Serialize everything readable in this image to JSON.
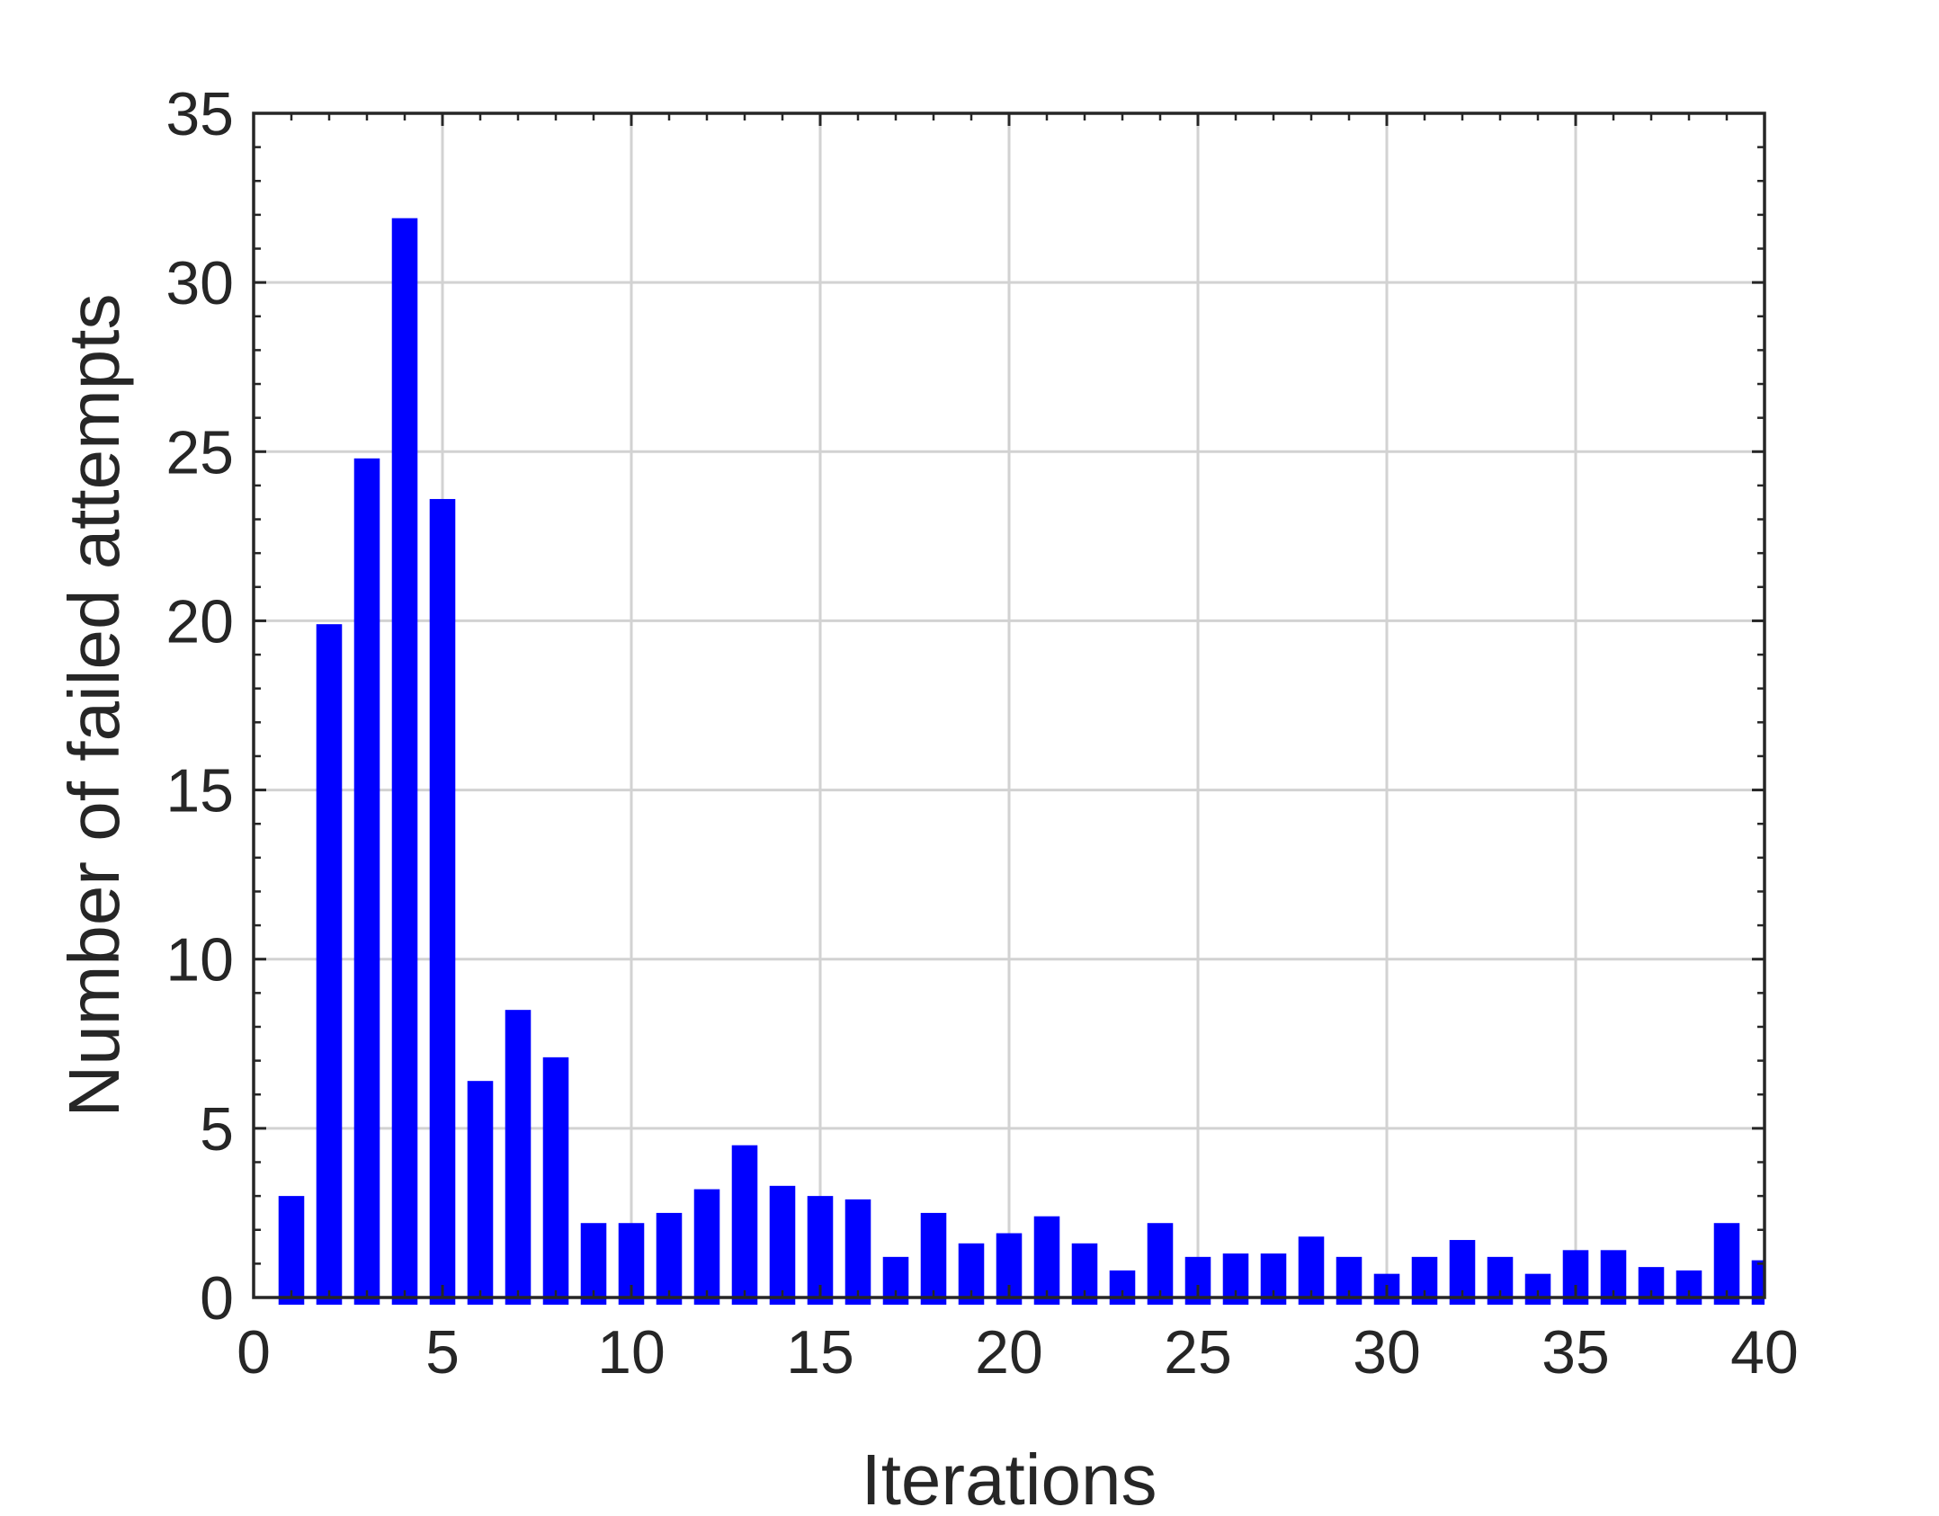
{
  "chart_data": {
    "type": "bar",
    "title": "",
    "xlabel": "Iterations",
    "ylabel": "Number of failed attempts",
    "xlim": [
      0,
      40
    ],
    "ylim": [
      0,
      35
    ],
    "xticks": [
      0,
      5,
      10,
      15,
      20,
      25,
      30,
      35,
      40
    ],
    "yticks": [
      0,
      5,
      10,
      15,
      20,
      25,
      30,
      35
    ],
    "grid": true,
    "bar_color": "#0000FF",
    "x": [
      1,
      2,
      3,
      4,
      5,
      6,
      7,
      8,
      9,
      10,
      11,
      12,
      13,
      14,
      15,
      16,
      17,
      18,
      19,
      20,
      21,
      22,
      23,
      24,
      25,
      26,
      27,
      28,
      29,
      30,
      31,
      32,
      33,
      34,
      35,
      36,
      37,
      38,
      39,
      40
    ],
    "values": [
      3.0,
      19.9,
      24.8,
      31.9,
      23.6,
      6.4,
      8.5,
      7.1,
      2.2,
      2.2,
      2.5,
      3.2,
      4.5,
      3.3,
      3.0,
      2.9,
      1.2,
      2.5,
      1.6,
      1.9,
      2.4,
      1.6,
      0.8,
      2.2,
      1.2,
      1.3,
      1.3,
      1.8,
      1.2,
      0.7,
      1.2,
      1.7,
      1.2,
      0.7,
      1.4,
      1.4,
      0.9,
      0.8,
      2.2,
      1.1
    ]
  }
}
